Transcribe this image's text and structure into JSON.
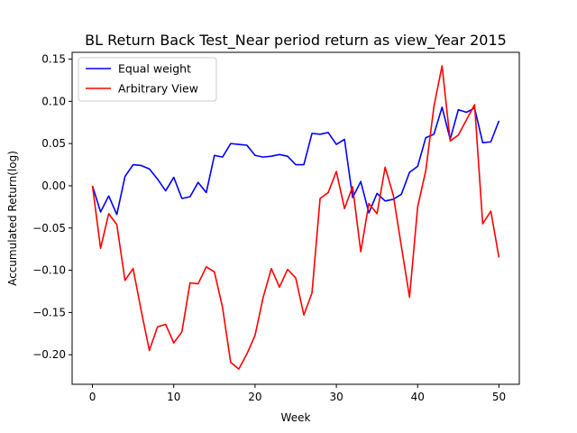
{
  "chart_data": {
    "type": "line",
    "title": "BL Return Back Test_Near period return as view_Year 2015",
    "xlabel": "Week",
    "ylabel": "Accumulated Return(log)",
    "xlim": [
      -2.5,
      52.5
    ],
    "ylim": [
      -0.235,
      0.158
    ],
    "xticks": [
      0,
      10,
      20,
      30,
      40,
      50
    ],
    "xtick_labels": [
      "0",
      "10",
      "20",
      "30",
      "40",
      "50"
    ],
    "yticks": [
      0.15,
      0.1,
      0.05,
      0.0,
      -0.05,
      -0.1,
      -0.15,
      -0.2
    ],
    "ytick_labels": [
      "0.15",
      "0.10",
      "0.05",
      "0.00",
      "−0.05",
      "−0.10",
      "−0.15",
      "−0.20"
    ],
    "grid": false,
    "legend_position": "top-left",
    "x": [
      0,
      1,
      2,
      3,
      4,
      5,
      6,
      7,
      8,
      9,
      10,
      11,
      12,
      13,
      14,
      15,
      16,
      17,
      18,
      19,
      20,
      21,
      22,
      23,
      24,
      25,
      26,
      27,
      28,
      29,
      30,
      31,
      32,
      33,
      34,
      35,
      36,
      37,
      38,
      39,
      40,
      41,
      42,
      43,
      44,
      45,
      46,
      47,
      48,
      49,
      50
    ],
    "series": [
      {
        "name": "Equal weight",
        "color": "#0000ff",
        "values": [
          0.0,
          -0.031,
          -0.012,
          -0.034,
          0.011,
          0.025,
          0.024,
          0.02,
          0.008,
          -0.006,
          0.01,
          -0.015,
          -0.013,
          0.004,
          -0.008,
          0.036,
          0.034,
          0.05,
          0.049,
          0.048,
          0.036,
          0.034,
          0.035,
          0.037,
          0.035,
          0.025,
          0.025,
          0.062,
          0.061,
          0.063,
          0.049,
          0.055,
          -0.014,
          0.005,
          -0.032,
          -0.009,
          -0.018,
          -0.016,
          -0.01,
          0.016,
          0.023,
          0.057,
          0.061,
          0.093,
          0.055,
          0.09,
          0.087,
          0.092,
          0.051,
          0.052,
          0.077
        ]
      },
      {
        "name": "Arbitrary View",
        "color": "#ff0000",
        "values": [
          0.0,
          -0.074,
          -0.033,
          -0.046,
          -0.112,
          -0.098,
          -0.148,
          -0.195,
          -0.167,
          -0.164,
          -0.186,
          -0.173,
          -0.115,
          -0.116,
          -0.096,
          -0.102,
          -0.144,
          -0.209,
          -0.217,
          -0.199,
          -0.177,
          -0.132,
          -0.098,
          -0.12,
          -0.099,
          -0.109,
          -0.153,
          -0.127,
          -0.015,
          -0.008,
          0.017,
          -0.027,
          -0.001,
          -0.078,
          -0.021,
          -0.033,
          0.022,
          -0.011,
          -0.072,
          -0.132,
          -0.025,
          0.018,
          0.094,
          0.142,
          0.053,
          0.06,
          0.078,
          0.096,
          -0.045,
          -0.03,
          -0.085
        ]
      }
    ]
  }
}
